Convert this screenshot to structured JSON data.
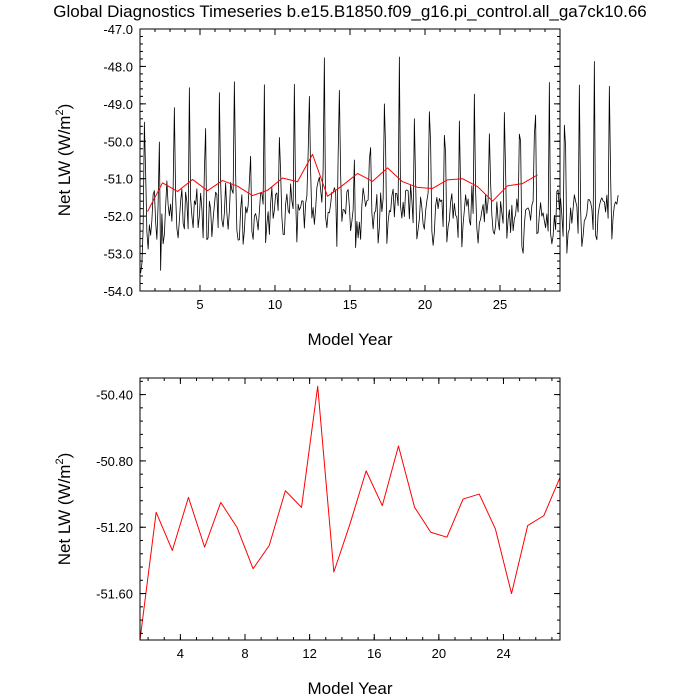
{
  "title": "Global Diagnostics Timeseries b.e15.B1850.f09_g16.pi_control.all_ga7ck10.66",
  "colors": {
    "monthly": "#000000",
    "annual": "#ff0000",
    "axes": "#000000"
  },
  "chart_data": [
    {
      "type": "line",
      "title": "Global Diagnostics Timeseries b.e15.B1850.f09_g16.pi_control.all_ga7ck10.66",
      "xlabel": "Model Year",
      "ylabel": "Net LW (W/m²)",
      "ylabel_main": "Net LW (W/m",
      "ylabel_sup": "2",
      "ylabel_tail": ")",
      "xlim": [
        1.0,
        29.0
      ],
      "ylim": [
        -54.0,
        -47.0
      ],
      "xticks": [
        5,
        10,
        15,
        20,
        25
      ],
      "xtick_labels": [
        "5",
        "10",
        "15",
        "20",
        "25"
      ],
      "yticks": [
        -54.0,
        -53.0,
        -52.0,
        -51.0,
        -50.0,
        -49.0,
        -48.0,
        -47.0
      ],
      "ytick_labels": [
        "-54.0",
        "-53.0",
        "-52.0",
        "-51.0",
        "-50.0",
        "-49.0",
        "-48.0",
        "-47.0"
      ],
      "grid": false,
      "series": [
        {
          "color": "#000000",
          "x_start": 1.0417,
          "x_step": 0.08333,
          "values": [
            -53.52,
            -53.27,
            -52.34,
            -49.49,
            -50.83,
            -52.42,
            -52.88,
            -52.23,
            -52.51,
            -52.11,
            -51.42,
            -51.32,
            -52.15,
            -52.62,
            -51.67,
            -50.02,
            -53.45,
            -51.94,
            -52.74,
            -52.49,
            -51.74,
            -51.06,
            -51.7,
            -51.99,
            -51.68,
            -52.14,
            -51.28,
            -49.1,
            -51.45,
            -52.33,
            -52.58,
            -52.11,
            -51.6,
            -51.28,
            -52.19,
            -52.34,
            -51.36,
            -51.62,
            -52.34,
            -48.57,
            -51.54,
            -51.99,
            -52.31,
            -51.59,
            -51.69,
            -51.27,
            -52.31,
            -52.0,
            -51.39,
            -51.8,
            -52.58,
            -50.8,
            -49.66,
            -52.63,
            -52.58,
            -51.6,
            -51.81,
            -52.55,
            -52.08,
            -51.71,
            -51.36,
            -51.42,
            -52.31,
            -48.7,
            -51.07,
            -52.1,
            -52.29,
            -51.92,
            -51.12,
            -51.92,
            -52.35,
            -51.87,
            -51.1,
            -51.3,
            -51.39,
            -48.41,
            -50.85,
            -52.38,
            -52.64,
            -52.63,
            -51.82,
            -51.43,
            -52.75,
            -52.39,
            -51.75,
            -51.91,
            -51.72,
            -51.08,
            -50.4,
            -52.4,
            -52.62,
            -52.0,
            -51.93,
            -52.1,
            -52.37,
            -51.87,
            -51.38,
            -51.39,
            -51.68,
            -48.49,
            -52.71,
            -52.21,
            -51.88,
            -52.49,
            -51.66,
            -51.24,
            -52.06,
            -51.84,
            -51.42,
            -51.38,
            -51.85,
            -49.9,
            -50.82,
            -52.03,
            -52.49,
            -52.49,
            -51.68,
            -51.41,
            -51.84,
            -51.93,
            -51.14,
            -51.59,
            -51.8,
            -48.48,
            -51.52,
            -52.69,
            -51.68,
            -51.84,
            -51.76,
            -51.59,
            -51.6,
            -52.32,
            -51.66,
            -51.46,
            -50.35,
            -48.8,
            -50.78,
            -52.05,
            -51.77,
            -52.22,
            -51.81,
            -51.24,
            -51.07,
            -50.96,
            -51.29,
            -51.63,
            -50.75,
            -47.77,
            -52.03,
            -52.31,
            -51.9,
            -51.91,
            -51.68,
            -51.36,
            -51.38,
            -51.24,
            -51.34,
            -52.81,
            -50.41,
            -48.64,
            -50.87,
            -52.14,
            -51.82,
            -51.84,
            -51.94,
            -51.35,
            -51.29,
            -51.74,
            -52.39,
            -52.14,
            -51.83,
            -50.5,
            -52.84,
            -52.14,
            -52.58,
            -52.16,
            -52.62,
            -51.72,
            -51.25,
            -51.48,
            -51.74,
            -51.59,
            -51.57,
            -50.49,
            -50.17,
            -51.91,
            -52.34,
            -51.91,
            -51.86,
            -51.42,
            -52.72,
            -52.3,
            -51.38,
            -51.88,
            -51.54,
            -49.0,
            -50.2,
            -52.73,
            -52.15,
            -51.85,
            -51.88,
            -51.46,
            -51.28,
            -52.02,
            -51.39,
            -51.4,
            -51.72,
            -47.75,
            -51.75,
            -52.05,
            -51.63,
            -52.01,
            -51.32,
            -51.3,
            -51.32,
            -52.07,
            -51.18,
            -51.57,
            -52.18,
            -49.4,
            -51.08,
            -52.61,
            -52.35,
            -52.08,
            -51.49,
            -51.77,
            -52.21,
            -52.35,
            -51.86,
            -51.59,
            -51.38,
            -49.21,
            -50.04,
            -52.4,
            -52.78,
            -52.43,
            -51.72,
            -51.5,
            -51.8,
            -51.53,
            -51.61,
            -51.57,
            -52.28,
            -49.84,
            -50.31,
            -52.69,
            -52.28,
            -52.11,
            -51.62,
            -51.4,
            -52.06,
            -51.66,
            -51.97,
            -52.03,
            -52.57,
            -49.46,
            -51.23,
            -52.82,
            -52.21,
            -51.84,
            -51.43,
            -51.73,
            -51.54,
            -52.12,
            -52.24,
            -51.19,
            -51.93,
            -48.74,
            -51.32,
            -52.33,
            -52.72,
            -52.18,
            -52.08,
            -51.86,
            -51.69,
            -52.15,
            -51.43,
            -51.93,
            -51.59,
            -49.8,
            -51.11,
            -51.97,
            -52.4,
            -52.48,
            -52.25,
            -51.62,
            -52.12,
            -52.37,
            -51.61,
            -51.91,
            -52.19,
            -49.23,
            -50.83,
            -52.59,
            -52.08,
            -51.83,
            -52.44,
            -51.71,
            -52.39,
            -52.07,
            -51.96,
            -51.54,
            -51.89,
            -49.81,
            -49.99,
            -52.81,
            -52.99,
            -52.23,
            -51.84,
            -51.8,
            -51.78,
            -51.87,
            -52.11,
            -51.71,
            -51.6,
            -49.82,
            -49.3,
            -52.47,
            -52.44,
            -51.96,
            -51.64,
            -52.0,
            -51.91,
            -52.13,
            -52.31,
            -51.94,
            -52.4,
            -48.43,
            -52.47,
            -52.74,
            -52.53,
            -51.98,
            -52.36,
            -51.34,
            -51.3,
            -51.83,
            -51.53,
            -51.98,
            -52.54,
            -49.57,
            -50.15,
            -52.99,
            -52.45,
            -52.35,
            -51.78,
            -52.19,
            -51.79,
            -51.43,
            -51.6,
            -51.74,
            -52.46,
            -48.5,
            -51.81,
            -52.81,
            -52.52,
            -52.11,
            -52.07,
            -51.93,
            -51.56,
            -51.56,
            -51.63,
            -51.81,
            -52.36,
            -47.87,
            -52.51,
            -52.63,
            -51.95,
            -51.73,
            -51.58,
            -51.51,
            -51.6,
            -51.62,
            -51.89,
            -51.44,
            -52.06,
            -48.53,
            -50.92,
            -52.61,
            -52.03,
            -51.71,
            -51.62,
            -51.68,
            -51.44
          ]
        },
        {
          "color": "#ff0000",
          "x": [
            1.5,
            2.5,
            3.5,
            4.5,
            5.5,
            6.5,
            7.5,
            8.5,
            9.5,
            10.5,
            11.5,
            12.5,
            13.5,
            14.5,
            15.5,
            16.5,
            17.5,
            18.5,
            19.5,
            20.5,
            21.5,
            22.5,
            23.5,
            24.5,
            25.5,
            26.5,
            27.5
          ],
          "values": [
            -51.88,
            -51.11,
            -51.34,
            -51.02,
            -51.32,
            -51.05,
            -51.2,
            -51.45,
            -51.31,
            -50.98,
            -51.08,
            -50.35,
            -51.47,
            -51.18,
            -50.86,
            -51.07,
            -50.71,
            -51.08,
            -51.23,
            -51.26,
            -51.03,
            -51.0,
            -51.21,
            -51.6,
            -51.19,
            -51.13,
            -50.9
          ]
        }
      ]
    },
    {
      "type": "line",
      "title": "",
      "xlabel": "Model Year",
      "ylabel": "Net LW (W/m²)",
      "ylabel_main": "Net LW (W/m",
      "ylabel_sup": "2",
      "ylabel_tail": ")",
      "xlim": [
        1.5,
        27.5
      ],
      "ylim": [
        -51.88,
        -50.3
      ],
      "xticks": [
        4,
        8,
        12,
        16,
        20,
        24
      ],
      "xtick_labels": [
        "4",
        "8",
        "12",
        "16",
        "20",
        "24"
      ],
      "yticks": [
        -51.6,
        -51.2,
        -50.8,
        -50.4
      ],
      "ytick_labels": [
        "-51.60",
        "-51.20",
        "-50.80",
        "-50.40"
      ],
      "grid": false,
      "series": [
        {
          "color": "#ff0000",
          "x": [
            1.5,
            2.5,
            3.5,
            4.5,
            5.5,
            6.5,
            7.5,
            8.5,
            9.5,
            10.5,
            11.5,
            12.5,
            13.5,
            14.5,
            15.5,
            16.5,
            17.5,
            18.5,
            19.5,
            20.5,
            21.5,
            22.5,
            23.5,
            24.5,
            25.5,
            26.5,
            27.5
          ],
          "values": [
            -51.88,
            -51.11,
            -51.34,
            -51.02,
            -51.32,
            -51.05,
            -51.2,
            -51.45,
            -51.31,
            -50.98,
            -51.08,
            -50.35,
            -51.47,
            -51.18,
            -50.86,
            -51.07,
            -50.71,
            -51.08,
            -51.23,
            -51.26,
            -51.03,
            -51.0,
            -51.21,
            -51.6,
            -51.19,
            -51.13,
            -50.9
          ]
        }
      ]
    }
  ]
}
